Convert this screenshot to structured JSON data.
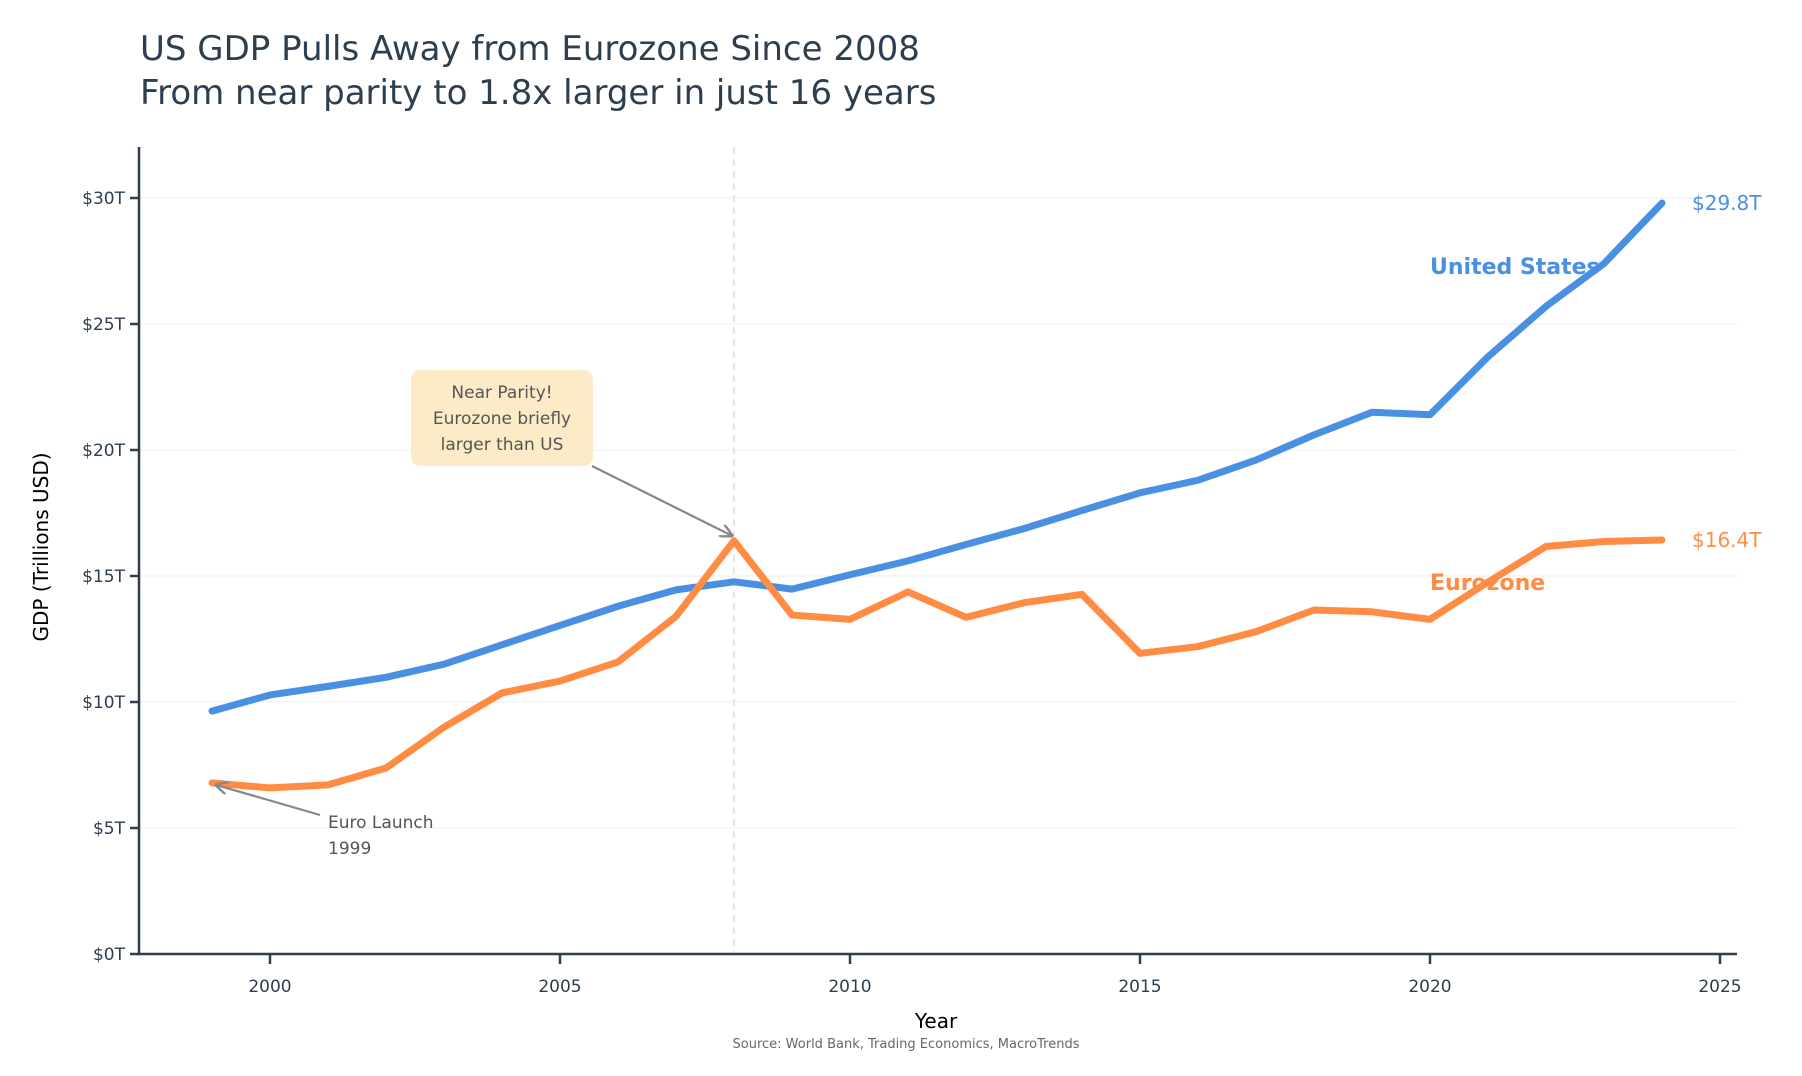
{
  "chart_data": {
    "type": "line",
    "title": "US GDP Pulls Away from Eurozone Since 2008",
    "subtitle": "From near parity to 1.8x larger in just 16 years",
    "xlabel": "Year",
    "ylabel": "GDP (Trillions USD)",
    "source": "Source: World Bank, Trading Economics, MacroTrends",
    "xlim": [
      1997.7,
      2025.3
    ],
    "ylim": [
      0,
      32
    ],
    "x_ticks": [
      2000,
      2005,
      2010,
      2015,
      2020,
      2025
    ],
    "x_tick_labels": [
      "2000",
      "2005",
      "2010",
      "2015",
      "2020",
      "2025"
    ],
    "y_ticks": [
      0,
      5,
      10,
      15,
      20,
      25,
      30
    ],
    "y_tick_labels": [
      "$0T",
      "$5T",
      "$10T",
      "$15T",
      "$20T",
      "$25T",
      "$30T"
    ],
    "grid": "horizontal",
    "x": [
      1999,
      2000,
      2001,
      2002,
      2003,
      2004,
      2005,
      2006,
      2007,
      2008,
      2009,
      2010,
      2011,
      2012,
      2013,
      2014,
      2015,
      2016,
      2017,
      2018,
      2019,
      2020,
      2021,
      2022,
      2023,
      2024
    ],
    "series": [
      {
        "name": "United States",
        "color": "#4a90e2",
        "values": [
          9.64,
          10.28,
          10.62,
          10.98,
          11.5,
          12.27,
          13.04,
          13.8,
          14.45,
          14.77,
          14.48,
          15.05,
          15.6,
          16.25,
          16.88,
          17.6,
          18.3,
          18.8,
          19.6,
          20.6,
          21.5,
          21.4,
          23.7,
          25.7,
          27.4,
          29.8
        ],
        "end_label": "$29.8T",
        "inline_label": "United States"
      },
      {
        "name": "Eurozone",
        "color": "#ff8c42",
        "values": [
          6.79,
          6.59,
          6.71,
          7.38,
          9.0,
          10.36,
          10.83,
          11.59,
          13.4,
          16.4,
          13.45,
          13.28,
          14.37,
          13.36,
          13.94,
          14.27,
          11.93,
          12.2,
          12.79,
          13.65,
          13.58,
          13.28,
          14.76,
          16.17,
          16.37,
          16.43
        ],
        "end_label": "$16.4T",
        "inline_label": "Eurozone"
      }
    ],
    "reference_line": {
      "x": 2008,
      "style": "dashed",
      "color": "#dddddd"
    },
    "annotations": [
      {
        "text": [
          "Near Parity!",
          "Eurozone briefly",
          "larger than US"
        ],
        "target": {
          "x": 2008,
          "y": 16.4
        },
        "box_color": "#fdebc8",
        "arrow_color": "#888888"
      },
      {
        "text": [
          "Euro Launch",
          "1999"
        ],
        "target": {
          "x": 1999,
          "y": 6.79
        },
        "arrow_color": "#888888"
      }
    ]
  }
}
